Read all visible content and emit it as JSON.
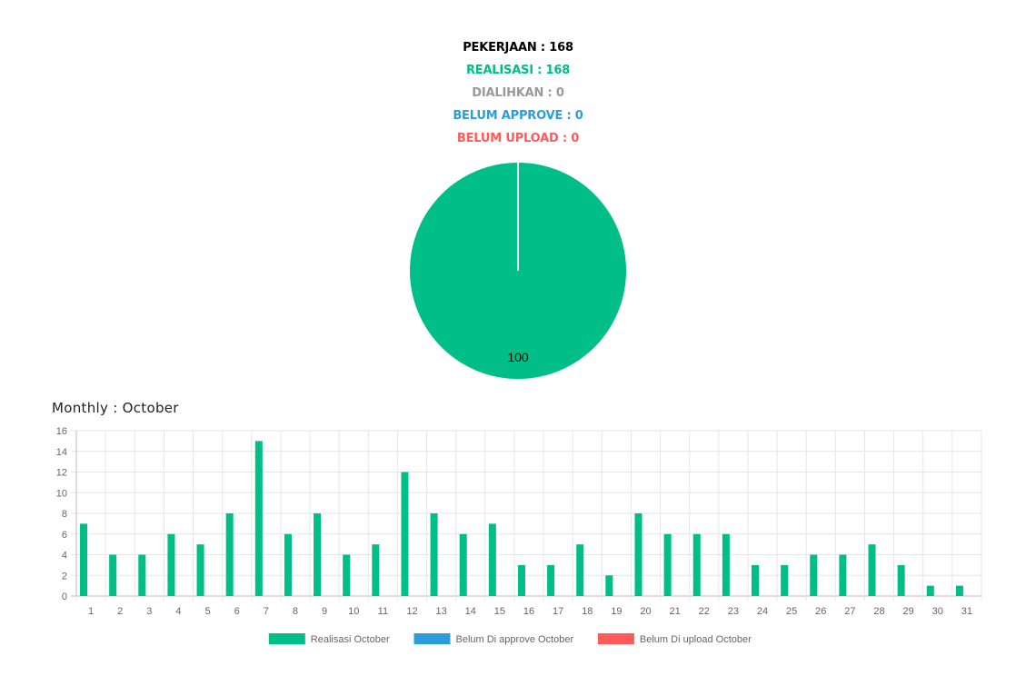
{
  "summary": {
    "pekerjaan": "PEKERJAAN : 168",
    "realisasi": "REALISASI : 168",
    "dialihkan": "DIALIHKAN : 0",
    "belum_approve": "BELUM APPROVE : 0",
    "belum_upload": "BELUM UPLOAD : 0"
  },
  "colors": {
    "realisasi": "#00BE87",
    "dialihkan": "#999999",
    "belum_approve": "#2D9CDB",
    "belum_upload": "#FF5A5A",
    "text": "#000000",
    "grid": "#e6e6e6",
    "axis_text": "#666666"
  },
  "monthly_title": "Monthly : October",
  "chart_data": [
    {
      "type": "pie",
      "slices": [
        {
          "label": "Realisasi",
          "value": 100,
          "color": "#00BE87"
        }
      ],
      "data_labels": [
        "100"
      ]
    },
    {
      "type": "bar",
      "categories": [
        "1",
        "2",
        "3",
        "4",
        "5",
        "6",
        "7",
        "8",
        "9",
        "10",
        "11",
        "12",
        "13",
        "14",
        "15",
        "16",
        "17",
        "18",
        "19",
        "20",
        "21",
        "22",
        "23",
        "24",
        "25",
        "26",
        "27",
        "28",
        "29",
        "30",
        "31"
      ],
      "series": [
        {
          "name": "Realisasi October",
          "color": "#00BE87",
          "values": [
            7,
            4,
            4,
            6,
            5,
            8,
            15,
            6,
            8,
            4,
            5,
            12,
            8,
            6,
            7,
            3,
            3,
            5,
            2,
            8,
            6,
            6,
            6,
            3,
            3,
            4,
            4,
            5,
            3,
            1,
            1
          ]
        },
        {
          "name": "Belum Di approve October",
          "color": "#2D9CDB",
          "values": [
            0,
            0,
            0,
            0,
            0,
            0,
            0,
            0,
            0,
            0,
            0,
            0,
            0,
            0,
            0,
            0,
            0,
            0,
            0,
            0,
            0,
            0,
            0,
            0,
            0,
            0,
            0,
            0,
            0,
            0,
            0
          ]
        },
        {
          "name": "Belum Di upload October",
          "color": "#FF5A5A",
          "values": [
            0,
            0,
            0,
            0,
            0,
            0,
            0,
            0,
            0,
            0,
            0,
            0,
            0,
            0,
            0,
            0,
            0,
            0,
            0,
            0,
            0,
            0,
            0,
            0,
            0,
            0,
            0,
            0,
            0,
            0,
            0
          ]
        }
      ],
      "ylim": [
        0,
        16
      ],
      "yticks": [
        "0",
        "2",
        "4",
        "6",
        "8",
        "10",
        "12",
        "14",
        "16"
      ],
      "grid": true,
      "legend_position": "bottom"
    }
  ]
}
